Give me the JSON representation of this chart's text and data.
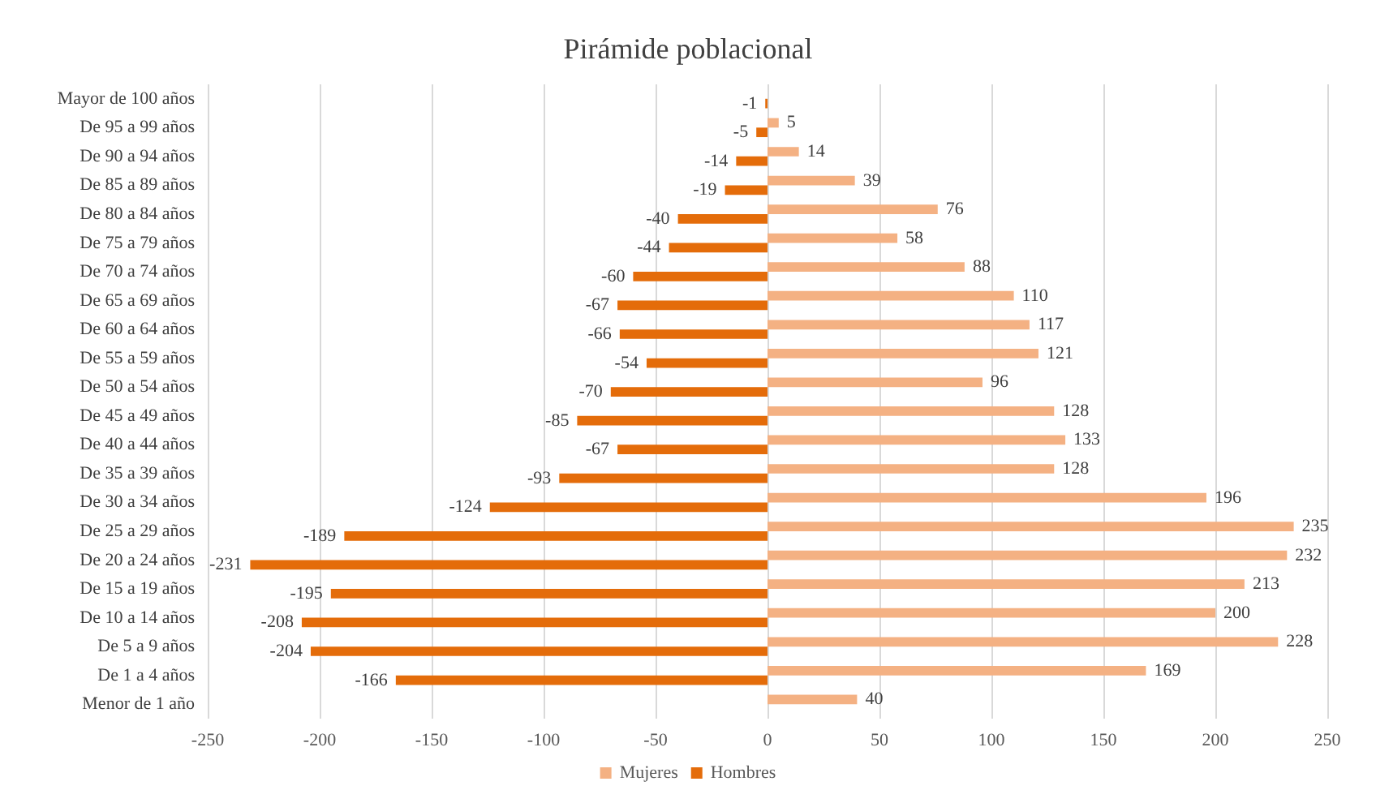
{
  "chart_data": {
    "type": "bar",
    "orientation": "horizontal",
    "title": "Pirámide poblacional",
    "categories": [
      "Mayor de 100 años",
      "De 95 a 99 años",
      "De 90 a 94 años",
      "De 85 a 89 años",
      "De 80 a 84 años",
      "De 75 a 79 años",
      "De 70 a 74 años",
      "De 65 a 69 años",
      "De 60 a 64 años",
      "De 55 a 59 años",
      "De 50 a 54 años",
      "De 45 a 49 años",
      "De 40 a 44 años",
      "De 35 a 39 años",
      "De 30 a 34 años",
      "De 25 a 29 años",
      "De 20 a 24 años",
      "De 15 a 19 años",
      "De 10 a 14 años",
      "De 5 a 9 años",
      "De 1 a 4 años",
      "Menor de 1 año"
    ],
    "series": [
      {
        "name": "Mujeres",
        "color": "#f4b183",
        "values": [
          null,
          5,
          14,
          39,
          76,
          58,
          88,
          110,
          117,
          121,
          96,
          128,
          133,
          128,
          196,
          235,
          232,
          213,
          200,
          228,
          169,
          40
        ]
      },
      {
        "name": "Hombres",
        "color": "#e46c0a",
        "values": [
          -1,
          -5,
          -14,
          -19,
          -40,
          -44,
          -60,
          -67,
          -66,
          -54,
          -70,
          -85,
          -67,
          -93,
          -124,
          -189,
          -231,
          -195,
          -208,
          -204,
          -166,
          null
        ]
      }
    ],
    "xlim": [
      -250,
      250
    ],
    "xticks": [
      -250,
      -200,
      -150,
      -100,
      -50,
      0,
      50,
      100,
      150,
      200,
      250
    ],
    "grid": "x",
    "legend": "bottom",
    "data_labels": true
  }
}
